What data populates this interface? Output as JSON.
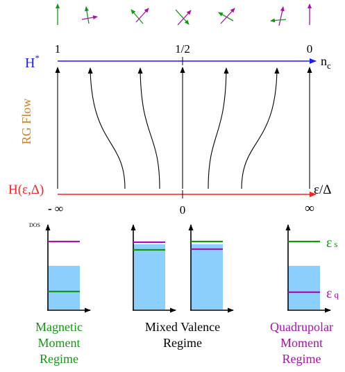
{
  "colors": {
    "blue": "#1a1aff",
    "red": "#ff2020",
    "green": "#119911",
    "magenta": "#aa11aa",
    "orange": "#d08020",
    "lightblue": "#8ccfff",
    "black": "#000000"
  },
  "top_axis": {
    "label": "H",
    "label_sup": "*",
    "ticks": [
      "1",
      "1/2",
      "0"
    ],
    "end_label": "n",
    "end_label_sub": "c"
  },
  "bottom_axis": {
    "label": "H(ε,Δ)",
    "ticks": [
      "- ∞",
      "0",
      "∞"
    ],
    "end_label": "ε/Δ"
  },
  "side_label": "RG Flow",
  "dos_label": "DOS",
  "levels": {
    "s_symbol": "ε",
    "s_sub": "s",
    "q_symbol": "ε",
    "q_sub": "q"
  },
  "captions": {
    "magnetic": [
      "Magnetic",
      "Moment",
      "Regime"
    ],
    "mixed": [
      "Mixed Valence",
      "Regime"
    ],
    "quadrupolar": [
      "Quadrupolar",
      "Moment",
      "Regime"
    ]
  }
}
